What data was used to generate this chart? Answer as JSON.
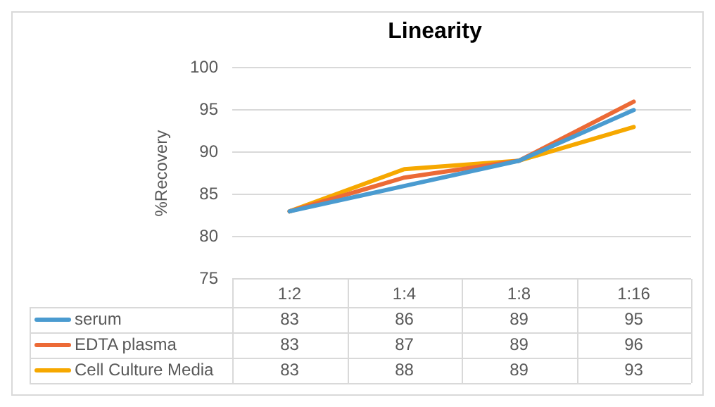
{
  "chart_data": {
    "type": "line",
    "title": "Linearity",
    "ylabel": "%Recovery",
    "categories": [
      "1:2",
      "1:4",
      "1:8",
      "1:16"
    ],
    "series": [
      {
        "name": "serum",
        "color": "#4a9bd0",
        "values": [
          83,
          86,
          89,
          95
        ]
      },
      {
        "name": "EDTA plasma",
        "color": "#ec6a36",
        "values": [
          83,
          87,
          89,
          96
        ]
      },
      {
        "name": "Cell Culture Media",
        "color": "#f6a800",
        "values": [
          83,
          88,
          89,
          93
        ]
      }
    ],
    "ylim": [
      75,
      100
    ],
    "yticks": [
      75,
      80,
      85,
      90,
      95,
      100
    ],
    "grid": "y",
    "legend": "bottom",
    "data_labels": true,
    "marker": "none"
  }
}
